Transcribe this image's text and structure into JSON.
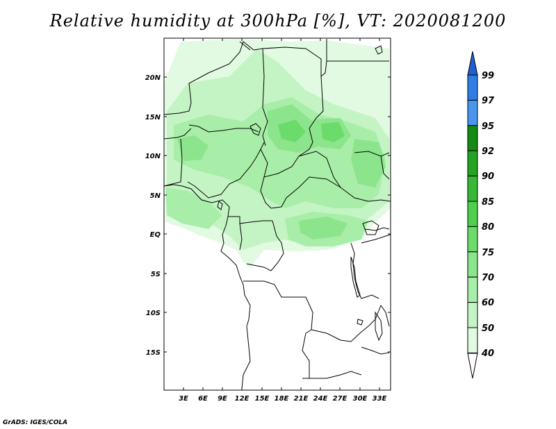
{
  "title": "Relative humidity at 300hPa [%], VT: 2020081200",
  "map": {
    "lat_labels": [
      "20N",
      "15N",
      "10N",
      "5N",
      "EQ",
      "5S",
      "10S",
      "15S"
    ],
    "lon_labels": [
      "3E",
      "6E",
      "9E",
      "12E",
      "15E",
      "18E",
      "21E",
      "24E",
      "27E",
      "30E",
      "33E"
    ]
  },
  "colorbar": {
    "labels": [
      "99",
      "97",
      "95",
      "92",
      "90",
      "85",
      "80",
      "75",
      "70",
      "60",
      "50",
      "40"
    ],
    "colors": [
      "#1f5fd0",
      "#2f7ee6",
      "#4a96ee",
      "#158a15",
      "#23a323",
      "#37b937",
      "#4fcf4f",
      "#6bdc6b",
      "#8ce58c",
      "#a8eea8",
      "#c4f4c4",
      "#e2fae2",
      "#ffffff"
    ]
  },
  "credit": "GrADS: IGES/COLA"
}
